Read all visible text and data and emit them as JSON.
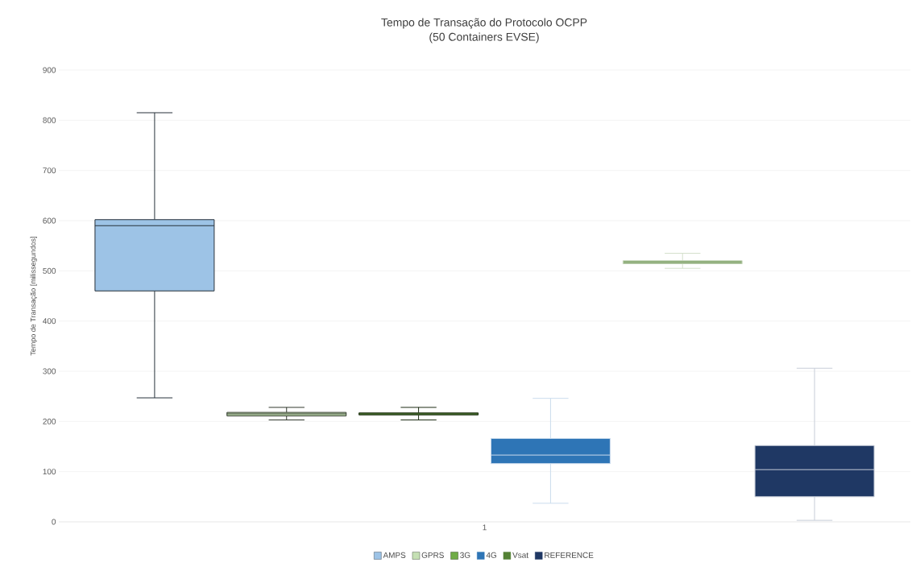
{
  "chart_data": {
    "type": "box",
    "title": "Tempo de Transação do Protocolo OCPP",
    "subtitle": "(50 Containers EVSE)",
    "ylabel": "Tempo de Transação [milissegundos]",
    "categories": [
      "1"
    ],
    "series": [
      {
        "name": "AMPS",
        "color": "#9dc3e6",
        "boxes": [
          {
            "low": 247,
            "q1": 460,
            "median": 590,
            "q3": 602,
            "high": 815
          }
        ]
      },
      {
        "name": "GPRS",
        "color": "#c5e0b4",
        "boxes": [
          {
            "low": 203,
            "q1": 211,
            "median": 215,
            "q3": 218,
            "high": 228
          }
        ]
      },
      {
        "name": "3G",
        "color": "#70ad47",
        "boxes": [
          {
            "low": 203,
            "q1": 213,
            "median": 215,
            "q3": 217,
            "high": 228
          }
        ]
      },
      {
        "name": "4G",
        "color": "#2e75b6",
        "boxes": [
          {
            "low": 37,
            "q1": 116,
            "median": 133,
            "q3": 166,
            "high": 246
          }
        ]
      },
      {
        "name": "Vsat",
        "color": "#548235",
        "boxes": [
          {
            "low": 505,
            "q1": 514,
            "median": 517,
            "q3": 520,
            "high": 535
          }
        ]
      },
      {
        "name": "REFERENCE",
        "color": "#1f3864",
        "boxes": [
          {
            "low": 3,
            "q1": 50,
            "median": 104,
            "q3": 152,
            "high": 306
          }
        ]
      }
    ],
    "ylim": [
      0,
      900
    ],
    "yticks": [
      0,
      100,
      200,
      300,
      400,
      500,
      600,
      700,
      800,
      900
    ],
    "grid": "y",
    "legend": "bottom"
  }
}
